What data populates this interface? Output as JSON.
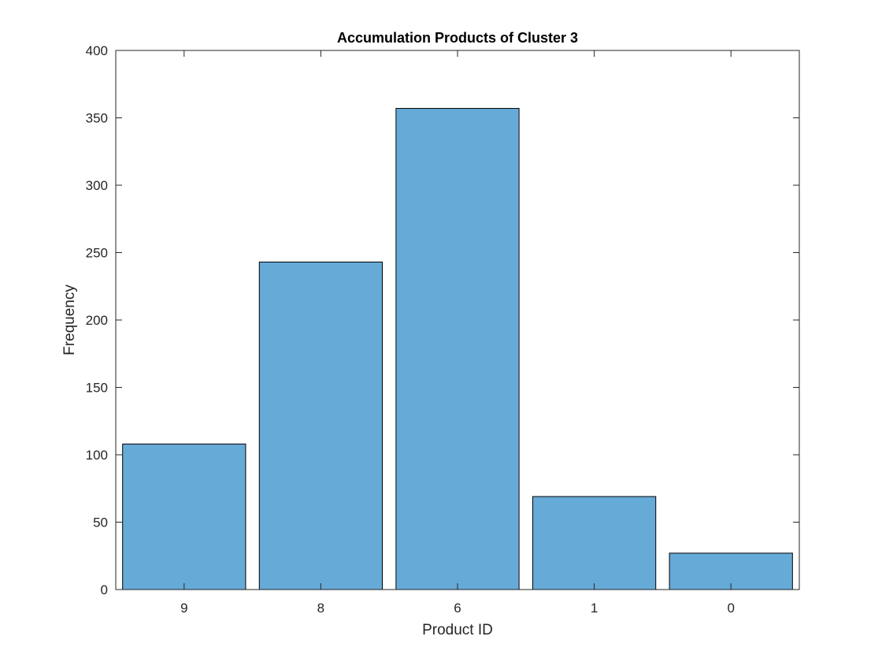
{
  "chart_data": {
    "type": "bar",
    "title": "Accumulation Products of Cluster 3",
    "xlabel": "Product ID",
    "ylabel": "Frequency",
    "categories": [
      "9",
      "8",
      "6",
      "1",
      "0"
    ],
    "values": [
      108,
      243,
      357,
      69,
      27
    ],
    "ylim": [
      0,
      400
    ],
    "yticks": [
      0,
      50,
      100,
      150,
      200,
      250,
      300,
      350,
      400
    ],
    "grid": false,
    "legend": "none",
    "bar_color": "#66aad8",
    "edge_color": "#000000"
  }
}
